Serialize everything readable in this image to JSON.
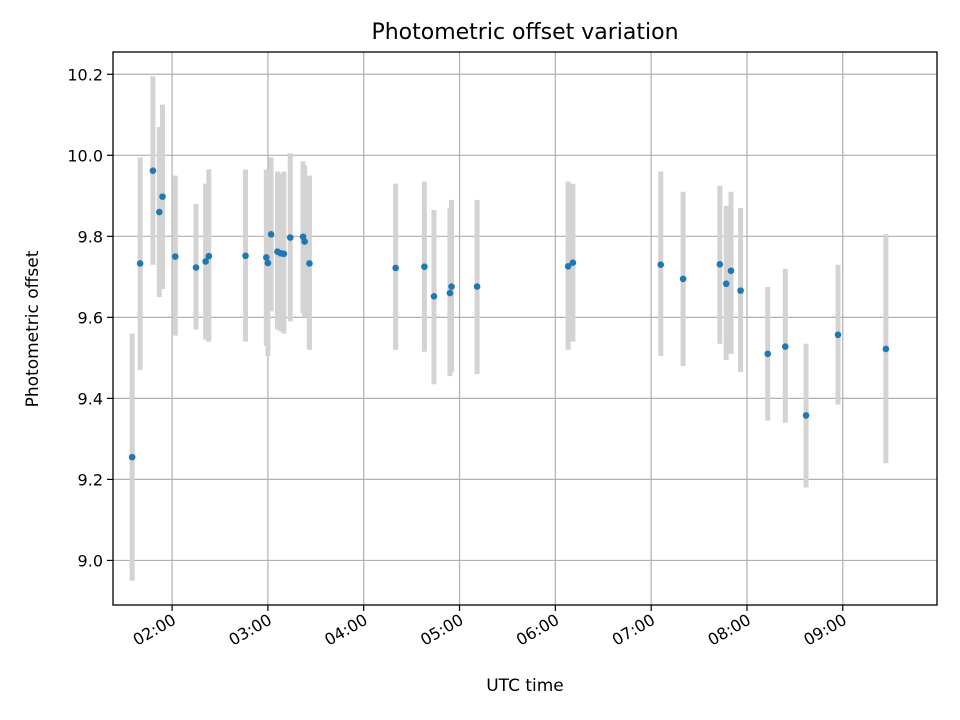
{
  "chart_data": {
    "type": "scatter",
    "title": "Photometric offset variation",
    "xlabel": "UTC time",
    "ylabel": "Photometric offset",
    "x_axis": {
      "kind": "time",
      "xlim": [
        "01:23",
        "09:59"
      ],
      "ticks": [
        "02:00",
        "03:00",
        "04:00",
        "05:00",
        "06:00",
        "07:00",
        "08:00",
        "09:00"
      ]
    },
    "y_axis": {
      "ylim": [
        8.89,
        10.255
      ],
      "ticks": [
        "9.0",
        "9.2",
        "9.4",
        "9.6",
        "9.8",
        "10.0",
        "10.2"
      ]
    },
    "grid": true,
    "colors": {
      "point": "#1f77b4",
      "errorbar": "#d3d3d3"
    },
    "series": [
      {
        "points": [
          {
            "time": "01:35",
            "y": 9.255,
            "ylo": 8.95,
            "yhi": 9.56
          },
          {
            "time": "01:40",
            "y": 9.733,
            "ylo": 9.47,
            "yhi": 9.995
          },
          {
            "time": "01:48",
            "y": 9.962,
            "ylo": 9.73,
            "yhi": 10.195
          },
          {
            "time": "01:52",
            "y": 9.86,
            "ylo": 9.65,
            "yhi": 10.07
          },
          {
            "time": "01:54",
            "y": 9.898,
            "ylo": 9.67,
            "yhi": 10.125
          },
          {
            "time": "02:02",
            "y": 9.75,
            "ylo": 9.555,
            "yhi": 9.95
          },
          {
            "time": "02:15",
            "y": 9.723,
            "ylo": 9.57,
            "yhi": 9.88
          },
          {
            "time": "02:21",
            "y": 9.738,
            "ylo": 9.545,
            "yhi": 9.93
          },
          {
            "time": "02:23",
            "y": 9.751,
            "ylo": 9.54,
            "yhi": 9.965
          },
          {
            "time": "02:46",
            "y": 9.752,
            "ylo": 9.54,
            "yhi": 9.965
          },
          {
            "time": "02:59",
            "y": 9.748,
            "ylo": 9.53,
            "yhi": 9.965
          },
          {
            "time": "03:00",
            "y": 9.734,
            "ylo": 9.505,
            "yhi": 9.965
          },
          {
            "time": "03:02",
            "y": 9.805,
            "ylo": 9.615,
            "yhi": 9.995
          },
          {
            "time": "03:06",
            "y": 9.762,
            "ylo": 9.57,
            "yhi": 9.96
          },
          {
            "time": "03:08",
            "y": 9.758,
            "ylo": 9.565,
            "yhi": 9.955
          },
          {
            "time": "03:10",
            "y": 9.757,
            "ylo": 9.56,
            "yhi": 9.96
          },
          {
            "time": "03:14",
            "y": 9.797,
            "ylo": 9.59,
            "yhi": 10.005
          },
          {
            "time": "03:22",
            "y": 9.799,
            "ylo": 9.61,
            "yhi": 9.985
          },
          {
            "time": "03:23",
            "y": 9.787,
            "ylo": 9.6,
            "yhi": 9.975
          },
          {
            "time": "03:26",
            "y": 9.733,
            "ylo": 9.52,
            "yhi": 9.95
          },
          {
            "time": "04:20",
            "y": 9.722,
            "ylo": 9.52,
            "yhi": 9.93
          },
          {
            "time": "04:38",
            "y": 9.725,
            "ylo": 9.515,
            "yhi": 9.935
          },
          {
            "time": "04:44",
            "y": 9.652,
            "ylo": 9.435,
            "yhi": 9.865
          },
          {
            "time": "04:54",
            "y": 9.66,
            "ylo": 9.455,
            "yhi": 9.87
          },
          {
            "time": "04:55",
            "y": 9.676,
            "ylo": 9.465,
            "yhi": 9.89
          },
          {
            "time": "05:11",
            "y": 9.676,
            "ylo": 9.46,
            "yhi": 9.89
          },
          {
            "time": "06:08",
            "y": 9.726,
            "ylo": 9.52,
            "yhi": 9.935
          },
          {
            "time": "06:11",
            "y": 9.735,
            "ylo": 9.54,
            "yhi": 9.93
          },
          {
            "time": "07:06",
            "y": 9.73,
            "ylo": 9.505,
            "yhi": 9.96
          },
          {
            "time": "07:20",
            "y": 9.695,
            "ylo": 9.48,
            "yhi": 9.91
          },
          {
            "time": "07:43",
            "y": 9.731,
            "ylo": 9.535,
            "yhi": 9.925
          },
          {
            "time": "07:47",
            "y": 9.683,
            "ylo": 9.495,
            "yhi": 9.875
          },
          {
            "time": "07:50",
            "y": 9.715,
            "ylo": 9.51,
            "yhi": 9.91
          },
          {
            "time": "07:56",
            "y": 9.666,
            "ylo": 9.465,
            "yhi": 9.87
          },
          {
            "time": "08:13",
            "y": 9.51,
            "ylo": 9.345,
            "yhi": 9.675
          },
          {
            "time": "08:24",
            "y": 9.528,
            "ylo": 9.34,
            "yhi": 9.72
          },
          {
            "time": "08:37",
            "y": 9.358,
            "ylo": 9.18,
            "yhi": 9.535
          },
          {
            "time": "08:57",
            "y": 9.557,
            "ylo": 9.385,
            "yhi": 9.73
          },
          {
            "time": "09:27",
            "y": 9.522,
            "ylo": 9.24,
            "yhi": 9.805
          }
        ]
      }
    ]
  }
}
